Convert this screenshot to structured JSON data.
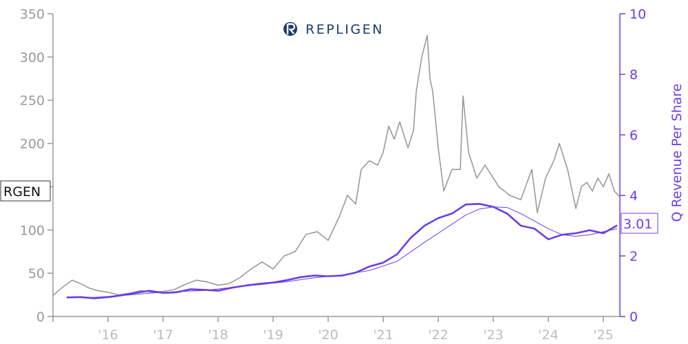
{
  "brand": {
    "name": "REPLIGEN",
    "logo_icon": "repligen-r-logo"
  },
  "colors": {
    "price": "#999999",
    "revenue": "#6a3de8",
    "left_axis": "#999999",
    "right_axis": "#6a3de8",
    "brand": "#1b3a6b"
  },
  "ticker": {
    "label": "RGEN",
    "value": 138
  },
  "last_value": {
    "label": "3.01",
    "value": 3.01
  },
  "chart_data": {
    "type": "line",
    "ylabel_right": "Q Revenue Per Share",
    "ylim_left": [
      0,
      350
    ],
    "ylim_right": [
      0,
      10
    ],
    "xlim": [
      2015.0,
      2025.3
    ],
    "left_ticks": [
      "0",
      "50",
      "100",
      "150",
      "200",
      "250",
      "300",
      "350"
    ],
    "right_ticks": [
      "0",
      "2",
      "4",
      "6",
      "8",
      "10"
    ],
    "x_ticks": [
      "'16",
      "'17",
      "'18",
      "'19",
      "'20",
      "'21",
      "'22",
      "'23",
      "'24",
      "'25"
    ],
    "x_tick_positions": [
      2016,
      2017,
      2018,
      2019,
      2020,
      2021,
      2022,
      2023,
      2024,
      2025
    ],
    "grid": false,
    "series": [
      {
        "axis": "left",
        "x": [
          2015.0,
          2015.1,
          2015.2,
          2015.35,
          2015.5,
          2015.65,
          2015.8,
          2016.0,
          2016.2,
          2016.4,
          2016.6,
          2016.8,
          2017.0,
          2017.2,
          2017.4,
          2017.6,
          2017.8,
          2018.0,
          2018.2,
          2018.4,
          2018.6,
          2018.8,
          2019.0,
          2019.2,
          2019.4,
          2019.5,
          2019.6,
          2019.8,
          2020.0,
          2020.2,
          2020.35,
          2020.5,
          2020.6,
          2020.75,
          2020.9,
          2021.0,
          2021.1,
          2021.2,
          2021.3,
          2021.45,
          2021.55,
          2021.6,
          2021.7,
          2021.8,
          2021.85,
          2021.9,
          2022.0,
          2022.1,
          2022.25,
          2022.4,
          2022.45,
          2022.55,
          2022.7,
          2022.85,
          2023.0,
          2023.1,
          2023.3,
          2023.5,
          2023.7,
          2023.8,
          2023.95,
          2024.1,
          2024.2,
          2024.35,
          2024.5,
          2024.6,
          2024.7,
          2024.8,
          2024.9,
          2025.0,
          2025.1,
          2025.2,
          2025.3
        ],
        "values": [
          24,
          30,
          35,
          42,
          38,
          33,
          30,
          28,
          25,
          27,
          30,
          28,
          29,
          31,
          37,
          42,
          40,
          36,
          38,
          45,
          55,
          63,
          55,
          70,
          75,
          85,
          95,
          98,
          88,
          115,
          140,
          130,
          170,
          180,
          175,
          190,
          220,
          205,
          225,
          195,
          215,
          260,
          300,
          325,
          275,
          260,
          195,
          145,
          170,
          170,
          255,
          190,
          160,
          175,
          160,
          150,
          140,
          135,
          170,
          120,
          160,
          180,
          200,
          170,
          125,
          150,
          155,
          145,
          160,
          150,
          165,
          145,
          138
        ]
      },
      {
        "axis": "right",
        "x": [
          2015.25,
          2015.5,
          2015.75,
          2016.0,
          2016.25,
          2016.5,
          2016.75,
          2017.0,
          2017.25,
          2017.5,
          2017.75,
          2018.0,
          2018.25,
          2018.5,
          2018.75,
          2019.0,
          2019.25,
          2019.5,
          2019.75,
          2020.0,
          2020.25,
          2020.5,
          2020.75,
          2021.0,
          2021.25,
          2021.5,
          2021.75,
          2022.0,
          2022.25,
          2022.5,
          2022.75,
          2023.0,
          2023.25,
          2023.5,
          2023.75,
          2024.0,
          2024.25,
          2024.5,
          2024.75,
          2025.0,
          2025.25
        ],
        "values": [
          0.63,
          0.64,
          0.6,
          0.64,
          0.7,
          0.78,
          0.85,
          0.78,
          0.8,
          0.9,
          0.88,
          0.85,
          0.95,
          1.02,
          1.08,
          1.12,
          1.2,
          1.3,
          1.35,
          1.33,
          1.35,
          1.45,
          1.65,
          1.78,
          2.05,
          2.6,
          3.0,
          3.25,
          3.4,
          3.7,
          3.72,
          3.62,
          3.4,
          3.0,
          2.9,
          2.55,
          2.7,
          2.75,
          2.85,
          2.75,
          3.01
        ]
      },
      {
        "axis": "right",
        "x": [
          2015.25,
          2015.75,
          2016.25,
          2016.75,
          2017.25,
          2017.75,
          2018.25,
          2018.75,
          2019.25,
          2019.75,
          2020.25,
          2020.75,
          2021.25,
          2021.75,
          2022.25,
          2022.5,
          2022.75,
          2023.0,
          2023.25,
          2023.5,
          2023.75,
          2024.0,
          2024.25,
          2024.5,
          2024.75,
          2025.0,
          2025.25
        ],
        "values": [
          0.63,
          0.63,
          0.69,
          0.77,
          0.82,
          0.86,
          0.96,
          1.05,
          1.15,
          1.28,
          1.37,
          1.52,
          1.82,
          2.45,
          3.05,
          3.35,
          3.55,
          3.62,
          3.6,
          3.4,
          3.15,
          2.9,
          2.7,
          2.65,
          2.7,
          2.8,
          2.9
        ]
      }
    ]
  }
}
